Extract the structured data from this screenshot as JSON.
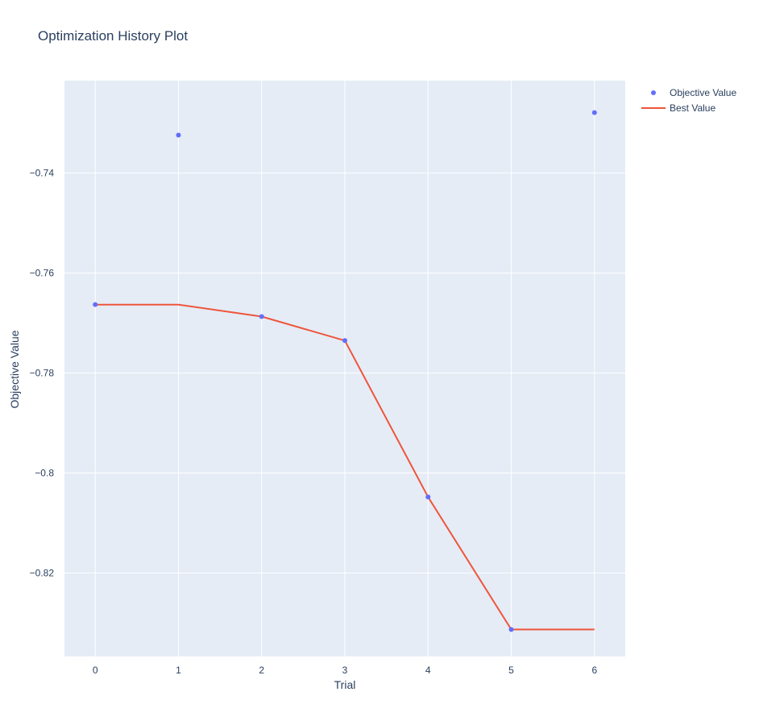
{
  "chart_data": {
    "type": "line",
    "title": "Optimization History Plot",
    "xlabel": "Trial",
    "ylabel": "Objective Value",
    "xlim": [
      -0.37,
      6.37
    ],
    "ylim": [
      -0.8367,
      -0.7215
    ],
    "x_ticks": [
      0,
      1,
      2,
      3,
      4,
      5,
      6
    ],
    "x_tick_labels": [
      "0",
      "1",
      "2",
      "3",
      "4",
      "5",
      "6"
    ],
    "y_ticks": [
      -0.82,
      -0.8,
      -0.78,
      -0.76,
      -0.74
    ],
    "y_tick_labels": [
      "−0.82",
      "−0.8",
      "−0.78",
      "−0.76",
      "−0.74"
    ],
    "grid": true,
    "legend_position": "top-right",
    "series": [
      {
        "name": "Objective Value",
        "kind": "scatter",
        "color": "#636efa",
        "x": [
          0,
          1,
          2,
          3,
          4,
          5,
          6
        ],
        "y": [
          -0.7663,
          -0.7324,
          -0.7687,
          -0.7735,
          -0.8048,
          -0.8313,
          -0.7279
        ]
      },
      {
        "name": "Best Value",
        "kind": "line",
        "color": "#ef553b",
        "x": [
          0,
          1,
          2,
          3,
          4,
          5,
          6
        ],
        "y": [
          -0.7663,
          -0.7663,
          -0.7687,
          -0.7735,
          -0.8048,
          -0.8313,
          -0.8313
        ]
      }
    ]
  }
}
